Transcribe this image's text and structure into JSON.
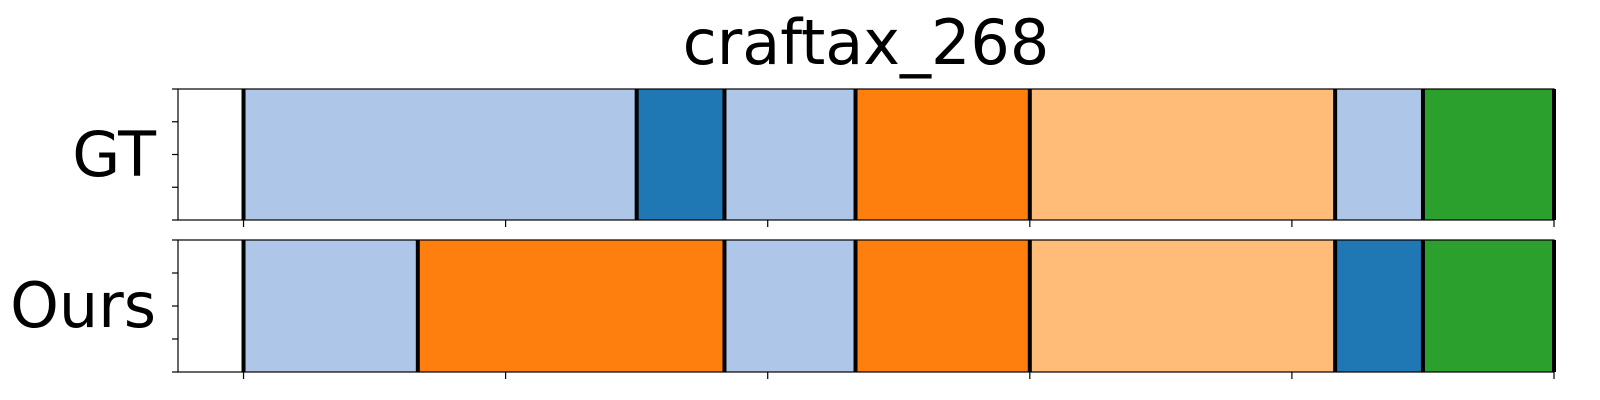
{
  "chart_data": {
    "type": "segmentation_timeline",
    "title": "craftax_268",
    "x_range": [
      -5,
      100
    ],
    "x_ticks": [
      0,
      20,
      40,
      60,
      80,
      100
    ],
    "colors": {
      "light_blue": "#aec7e8",
      "blue": "#1f77b4",
      "orange": "#ff7f0e",
      "light_orange": "#ffbb78",
      "green": "#2ca02c"
    },
    "rows": [
      {
        "label": "GT",
        "segments": [
          {
            "start": 0,
            "end": 30,
            "color": "light_blue"
          },
          {
            "start": 30,
            "end": 36.7,
            "color": "blue"
          },
          {
            "start": 36.7,
            "end": 46.7,
            "color": "light_blue"
          },
          {
            "start": 46.7,
            "end": 60,
            "color": "orange"
          },
          {
            "start": 60,
            "end": 83.3,
            "color": "light_orange"
          },
          {
            "start": 83.3,
            "end": 90,
            "color": "light_blue"
          },
          {
            "start": 90,
            "end": 100,
            "color": "green"
          }
        ]
      },
      {
        "label": "Ours",
        "segments": [
          {
            "start": 0,
            "end": 13.3,
            "color": "light_blue"
          },
          {
            "start": 13.3,
            "end": 36.7,
            "color": "orange"
          },
          {
            "start": 36.7,
            "end": 46.7,
            "color": "light_blue"
          },
          {
            "start": 46.7,
            "end": 60,
            "color": "orange"
          },
          {
            "start": 60,
            "end": 83.3,
            "color": "light_orange"
          },
          {
            "start": 83.3,
            "end": 90,
            "color": "blue"
          },
          {
            "start": 90,
            "end": 100,
            "color": "green"
          }
        ]
      }
    ]
  }
}
